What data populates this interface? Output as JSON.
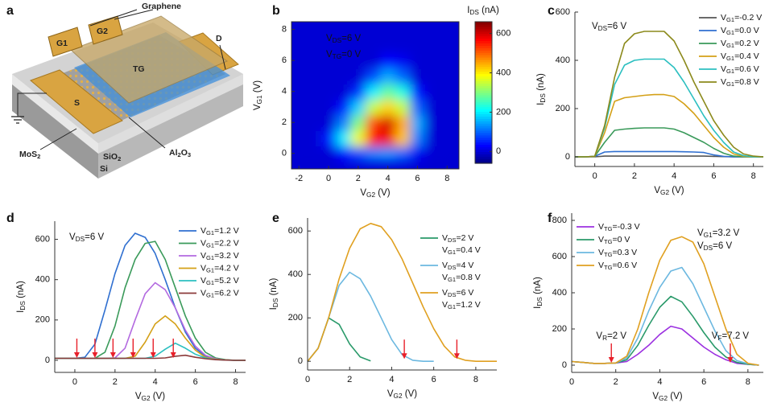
{
  "schematic": {
    "panel": "a",
    "labels": {
      "graphene": "Graphene",
      "g1": "G1",
      "g2": "G2",
      "tg": "TG",
      "d": "D",
      "s": "S",
      "mos2": "MoS2",
      "sio2": "SiO2",
      "si": "Si",
      "al2o3": "Al2O3"
    }
  },
  "chart_data": [
    {
      "type": "heatmap",
      "panel": "b",
      "x": [
        -2,
        -1,
        0,
        1,
        2,
        3,
        4,
        5,
        6,
        7,
        8
      ],
      "y": [
        0,
        1,
        2,
        3,
        4,
        5,
        6,
        7,
        8
      ],
      "values": [
        [
          0,
          0,
          0,
          30,
          80,
          120,
          130,
          100,
          20,
          0,
          0
        ],
        [
          0,
          0,
          50,
          200,
          380,
          560,
          580,
          430,
          120,
          0,
          0
        ],
        [
          0,
          0,
          0,
          120,
          300,
          520,
          600,
          450,
          150,
          0,
          0
        ],
        [
          0,
          0,
          0,
          40,
          180,
          350,
          420,
          350,
          100,
          0,
          0
        ],
        [
          0,
          0,
          0,
          0,
          60,
          200,
          280,
          230,
          40,
          0,
          0
        ],
        [
          0,
          0,
          0,
          0,
          0,
          80,
          150,
          100,
          0,
          0,
          0
        ],
        [
          0,
          0,
          0,
          0,
          0,
          0,
          30,
          20,
          0,
          0,
          0
        ],
        [
          0,
          0,
          0,
          0,
          0,
          0,
          0,
          0,
          0,
          0,
          0
        ],
        [
          0,
          0,
          0,
          0,
          0,
          0,
          0,
          0,
          0,
          0,
          0
        ]
      ],
      "xlim": [
        -2.5,
        8.8
      ],
      "ylim": [
        -1,
        8.5
      ],
      "xticks": [
        -2,
        0,
        2,
        4,
        6,
        8
      ],
      "yticks": [
        0,
        2,
        4,
        6,
        8
      ],
      "xlabel": "VG2 (V)",
      "ylabel": "VG1 (V)",
      "zlim": [
        -60,
        660
      ],
      "zticks": [
        0,
        200,
        400,
        600
      ],
      "zlabel": "IDS (nA)",
      "annotations": [
        "VDS=6 V",
        "VTG=0 V"
      ]
    },
    {
      "type": "line",
      "panel": "c",
      "x": [
        -1,
        -0.5,
        0,
        0.5,
        1,
        1.5,
        2,
        2.5,
        3,
        3.5,
        4,
        4.5,
        5,
        5.5,
        6,
        6.5,
        7,
        7.5,
        8,
        8.5
      ],
      "series": [
        {
          "name": "VG1=-0.2 V",
          "color": "#555555",
          "values": [
            0,
            0,
            0,
            3,
            3,
            3,
            3,
            3,
            3,
            3,
            3,
            3,
            3,
            3,
            2,
            1,
            0,
            0,
            0,
            0
          ]
        },
        {
          "name": "VG1=0.0 V",
          "color": "#2f6fd0",
          "values": [
            0,
            0,
            2,
            20,
            22,
            22,
            22,
            22,
            22,
            22,
            22,
            21,
            20,
            18,
            8,
            2,
            0,
            0,
            0,
            0
          ]
        },
        {
          "name": "VG1=0.2 V",
          "color": "#3a9a5a",
          "values": [
            0,
            0,
            2,
            60,
            110,
            115,
            118,
            120,
            120,
            120,
            115,
            100,
            80,
            60,
            35,
            15,
            3,
            0,
            0,
            0
          ]
        },
        {
          "name": "VG1=0.4 V",
          "color": "#d4a017",
          "values": [
            0,
            0,
            2,
            100,
            230,
            245,
            250,
            255,
            258,
            258,
            250,
            220,
            180,
            130,
            80,
            40,
            12,
            2,
            0,
            0
          ]
        },
        {
          "name": "VG1=0.6 V",
          "color": "#2bbfc0",
          "values": [
            0,
            0,
            2,
            120,
            300,
            380,
            400,
            405,
            405,
            405,
            370,
            310,
            240,
            170,
            110,
            60,
            20,
            5,
            0,
            0
          ]
        },
        {
          "name": "VG1=0.8 V",
          "color": "#8c8a1c",
          "values": [
            0,
            0,
            2,
            130,
            330,
            470,
            510,
            520,
            520,
            520,
            480,
            400,
            310,
            230,
            150,
            90,
            40,
            12,
            3,
            0
          ]
        }
      ],
      "xlim": [
        -1,
        8.5
      ],
      "ylim": [
        -40,
        600
      ],
      "xticks": [
        0,
        2,
        4,
        6,
        8
      ],
      "yticks": [
        0,
        200,
        400,
        600
      ],
      "xlabel": "VG2 (V)",
      "ylabel": "IDS (nA)",
      "annotations": [
        "VDS=6 V"
      ]
    },
    {
      "type": "line",
      "panel": "d",
      "x": [
        -1,
        -0.5,
        0,
        0.5,
        1,
        1.5,
        2,
        2.5,
        3,
        3.5,
        4,
        4.5,
        5,
        5.5,
        6,
        6.5,
        7,
        7.5,
        8,
        8.5
      ],
      "series": [
        {
          "name": "VG1=1.2 V",
          "color": "#2f6fd0",
          "values": [
            10,
            10,
            10,
            15,
            80,
            250,
            430,
            570,
            630,
            610,
            530,
            400,
            260,
            140,
            60,
            20,
            5,
            2,
            0,
            0
          ]
        },
        {
          "name": "VG1=2.2 V",
          "color": "#3a9a5a",
          "values": [
            10,
            10,
            10,
            10,
            10,
            40,
            170,
            360,
            500,
            580,
            590,
            500,
            360,
            220,
            110,
            40,
            12,
            3,
            0,
            0
          ]
        },
        {
          "name": "VG1=3.2 V",
          "color": "#b36ae0",
          "values": [
            10,
            10,
            10,
            10,
            10,
            10,
            12,
            60,
            200,
            330,
            385,
            350,
            260,
            150,
            70,
            25,
            8,
            2,
            0,
            0
          ]
        },
        {
          "name": "VG1=4.2 V",
          "color": "#d4a017",
          "values": [
            10,
            10,
            10,
            10,
            10,
            10,
            10,
            10,
            20,
            90,
            180,
            220,
            180,
            110,
            50,
            15,
            5,
            2,
            0,
            0
          ]
        },
        {
          "name": "VG1=5.2 V",
          "color": "#2bbfc0",
          "values": [
            10,
            10,
            10,
            10,
            10,
            10,
            10,
            10,
            10,
            10,
            20,
            55,
            85,
            60,
            30,
            12,
            4,
            1,
            0,
            0
          ]
        },
        {
          "name": "VG1=6.2 V",
          "color": "#8b3a3a",
          "values": [
            10,
            10,
            10,
            10,
            10,
            10,
            10,
            10,
            10,
            10,
            10,
            12,
            20,
            25,
            15,
            8,
            3,
            1,
            0,
            0
          ]
        }
      ],
      "arrows": [
        0.1,
        1.0,
        1.9,
        2.9,
        3.9,
        4.9
      ],
      "arrow_color": "#e8202a",
      "xlim": [
        -1,
        8.5
      ],
      "ylim": [
        -60,
        690
      ],
      "xticks": [
        0,
        2,
        4,
        6,
        8
      ],
      "yticks": [
        0,
        200,
        400,
        600
      ],
      "xlabel": "VG2 (V)",
      "ylabel": "IDS (nA)",
      "annotations": [
        "VDS=6 V"
      ]
    },
    {
      "type": "line",
      "panel": "e",
      "x": [
        0,
        0.5,
        1,
        1.5,
        2,
        2.5,
        3,
        3.5,
        4,
        4.5,
        5,
        5.5,
        6,
        6.5,
        7,
        7.5,
        8,
        8.5,
        9
      ],
      "series": [
        {
          "name": "VDS=2 V",
          "gate": "VG1=0.4 V",
          "color": "#2a9a6a",
          "values": [
            0,
            60,
            200,
            170,
            80,
            20,
            2,
            null,
            null,
            null,
            null,
            null,
            null,
            null,
            null,
            null,
            null,
            null,
            null
          ]
        },
        {
          "name": "VDS=4 V",
          "gate": "VG1=0.8 V",
          "color": "#6cb8e0",
          "values": [
            0,
            60,
            200,
            350,
            410,
            380,
            300,
            200,
            100,
            30,
            5,
            0,
            0,
            null,
            null,
            null,
            null,
            null,
            null
          ]
        },
        {
          "name": "VDS=6 V",
          "gate": "VG1=1.2 V",
          "color": "#e0a020",
          "values": [
            0,
            60,
            200,
            380,
            520,
            610,
            635,
            620,
            560,
            470,
            360,
            250,
            150,
            70,
            20,
            5,
            0,
            0,
            0
          ]
        }
      ],
      "arrows": [
        4.6,
        7.1
      ],
      "arrow_color": "#e8202a",
      "xlim": [
        0,
        9
      ],
      "ylim": [
        -40,
        660
      ],
      "xticks": [
        0,
        2,
        4,
        6,
        8
      ],
      "yticks": [
        0,
        200,
        400,
        600
      ],
      "xlabel": "VG2 (V)",
      "ylabel": "IDS (nA)"
    },
    {
      "type": "line",
      "panel": "f",
      "x": [
        0,
        0.5,
        1,
        1.5,
        2,
        2.5,
        3,
        3.5,
        4,
        4.5,
        5,
        5.5,
        6,
        6.5,
        7,
        7.5,
        8,
        8.5
      ],
      "series": [
        {
          "name": "VTG=-0.3 V",
          "color": "#9b30e0",
          "values": [
            20,
            15,
            10,
            10,
            12,
            20,
            60,
            110,
            170,
            215,
            200,
            150,
            100,
            60,
            30,
            10,
            5,
            0
          ]
        },
        {
          "name": "VTG=0 V",
          "color": "#2a9a6a",
          "values": [
            20,
            15,
            10,
            10,
            12,
            30,
            110,
            220,
            320,
            380,
            350,
            270,
            180,
            100,
            45,
            15,
            5,
            0
          ]
        },
        {
          "name": "VTG=0.3 V",
          "color": "#6cb8e0",
          "values": [
            20,
            15,
            10,
            10,
            12,
            40,
            150,
            300,
            430,
            520,
            540,
            450,
            320,
            190,
            80,
            25,
            8,
            0
          ]
        },
        {
          "name": "VTG=0.6 V",
          "color": "#e0a020",
          "values": [
            20,
            15,
            10,
            10,
            12,
            50,
            200,
            400,
            580,
            690,
            710,
            680,
            560,
            380,
            200,
            60,
            10,
            0
          ]
        }
      ],
      "arrows": [
        {
          "x": 1.8,
          "label": "VR=2 V"
        },
        {
          "x": 7.2,
          "label": "VF=7.2 V"
        }
      ],
      "arrow_color": "#e8202a",
      "xlim": [
        0,
        8.7
      ],
      "ylim": [
        -40,
        840
      ],
      "xticks": [
        0,
        2,
        4,
        6,
        8
      ],
      "yticks": [
        0,
        200,
        400,
        600,
        800
      ],
      "xlabel": "VG2 (V)",
      "ylabel": "IDS (nA)",
      "annotations": [
        "VG1=3.2 V",
        "VDS=6 V"
      ]
    }
  ]
}
